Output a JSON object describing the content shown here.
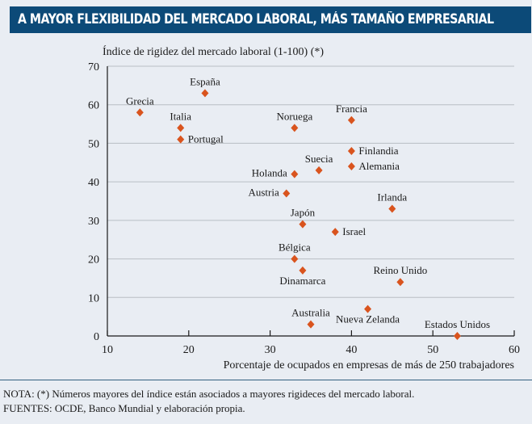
{
  "title": "A MAYOR FLEXIBILIDAD DEL MERCADO LABORAL, MÁS TAMAÑO EMPRESARIAL",
  "notes": {
    "nota": "NOTA: (*) Números mayores del índice están asociados a mayores rigideces del mercado laboral.",
    "fuentes": "FUENTES: OCDE,  Banco Mundial y elaboración propia."
  },
  "chart_data": {
    "type": "scatter",
    "title": "",
    "xlabel": "Porcentaje de ocupados en empresas de más de 250 trabajadores",
    "ylabel": "Índice de rigidez del mercado laboral (1-100) (*)",
    "xlim": [
      10,
      60
    ],
    "ylim": [
      0,
      70
    ],
    "xticks": [
      "10",
      "20",
      "30",
      "40",
      "50",
      "60"
    ],
    "yticks": [
      "0",
      "10",
      "20",
      "30",
      "40",
      "50",
      "60",
      "70"
    ],
    "grid": "horizontal",
    "marker": "diamond",
    "color": "#d9541e",
    "points": [
      {
        "label": "Grecia",
        "x": 14,
        "y": 58
      },
      {
        "label": "España",
        "x": 22,
        "y": 63
      },
      {
        "label": "Italia",
        "x": 19,
        "y": 54
      },
      {
        "label": "Portugal",
        "x": 19,
        "y": 51
      },
      {
        "label": "Noruega",
        "x": 33,
        "y": 54
      },
      {
        "label": "Francia",
        "x": 40,
        "y": 56
      },
      {
        "label": "Finlandia",
        "x": 40,
        "y": 48
      },
      {
        "label": "Alemania",
        "x": 40,
        "y": 44
      },
      {
        "label": "Suecia",
        "x": 36,
        "y": 43
      },
      {
        "label": "Holanda",
        "x": 33,
        "y": 42
      },
      {
        "label": "Austria",
        "x": 32,
        "y": 37
      },
      {
        "label": "Irlanda",
        "x": 45,
        "y": 33
      },
      {
        "label": "Japón",
        "x": 34,
        "y": 29
      },
      {
        "label": "Israel",
        "x": 38,
        "y": 27
      },
      {
        "label": "Bélgica",
        "x": 33,
        "y": 20
      },
      {
        "label": "Dinamarca",
        "x": 34,
        "y": 17
      },
      {
        "label": "Reino Unido",
        "x": 46,
        "y": 14
      },
      {
        "label": "Nueva Zelanda",
        "x": 42,
        "y": 7
      },
      {
        "label": "Australia",
        "x": 35,
        "y": 3
      },
      {
        "label": "Estados Unidos",
        "x": 53,
        "y": 0
      }
    ]
  }
}
